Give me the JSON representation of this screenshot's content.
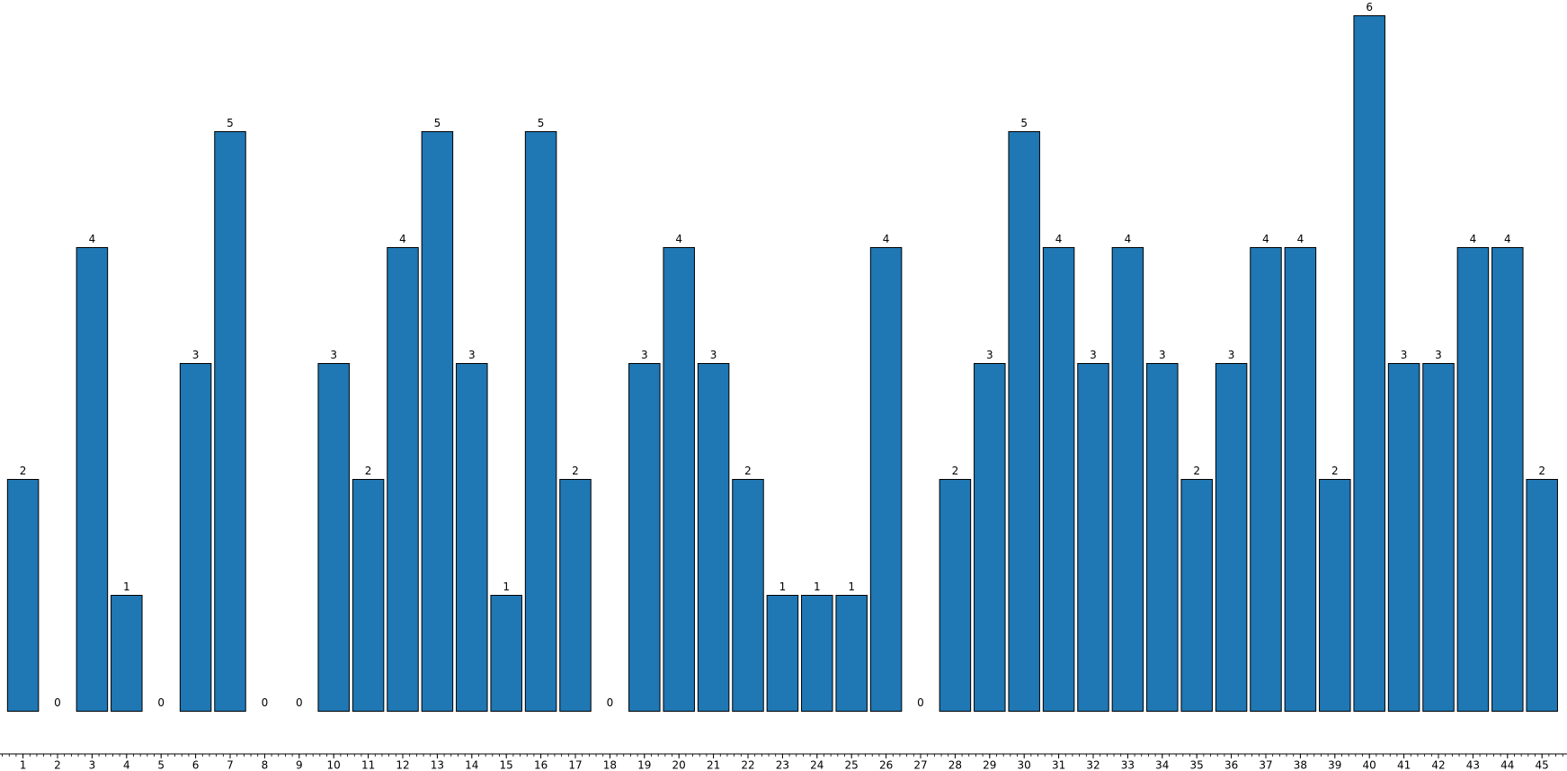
{
  "chart_data": {
    "type": "bar",
    "categories": [
      "1",
      "2",
      "3",
      "4",
      "5",
      "6",
      "7",
      "8",
      "9",
      "10",
      "11",
      "12",
      "13",
      "14",
      "15",
      "16",
      "17",
      "18",
      "19",
      "20",
      "21",
      "22",
      "23",
      "24",
      "25",
      "26",
      "27",
      "28",
      "29",
      "30",
      "31",
      "32",
      "33",
      "34",
      "35",
      "36",
      "37",
      "38",
      "39",
      "40",
      "41",
      "42",
      "43",
      "44",
      "45"
    ],
    "values": [
      2,
      0,
      4,
      1,
      0,
      3,
      5,
      0,
      0,
      3,
      2,
      4,
      5,
      3,
      1,
      5,
      2,
      0,
      3,
      4,
      3,
      2,
      1,
      1,
      1,
      4,
      0,
      2,
      3,
      5,
      4,
      3,
      4,
      3,
      2,
      3,
      4,
      4,
      2,
      6,
      3,
      3,
      4,
      4,
      2
    ],
    "color": "#1f77b4",
    "ylim": [
      0,
      6
    ]
  }
}
